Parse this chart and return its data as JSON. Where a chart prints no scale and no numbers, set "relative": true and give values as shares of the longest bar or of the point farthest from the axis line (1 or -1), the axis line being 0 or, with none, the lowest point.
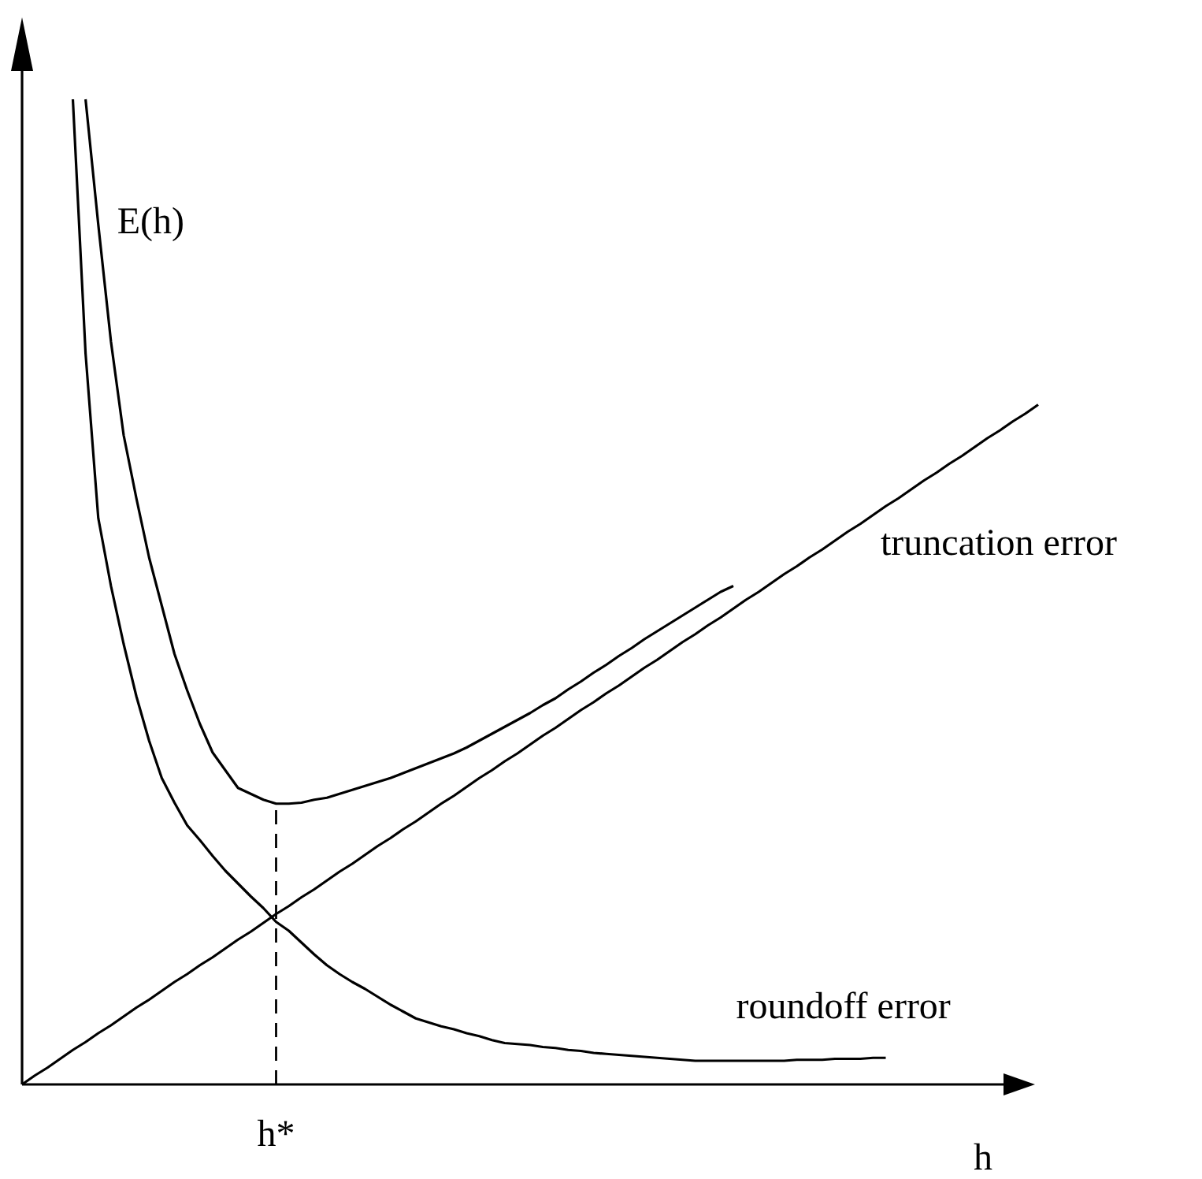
{
  "chart_data": {
    "type": "line",
    "relative": true,
    "xlabel": "h",
    "annotations": [
      "h*"
    ],
    "categories": [
      null,
      null,
      null,
      null,
      null,
      null,
      null,
      null,
      null,
      null,
      null,
      null,
      null,
      null,
      null,
      null,
      null,
      null,
      null,
      null,
      null,
      null,
      null,
      null,
      null,
      null,
      null,
      null,
      null,
      null,
      null,
      null,
      null,
      null,
      null,
      null,
      null,
      null,
      null,
      null,
      null,
      null,
      null,
      null,
      null,
      null,
      null,
      null,
      null,
      null,
      null,
      null,
      null,
      null,
      null,
      null,
      null,
      null,
      null,
      null,
      null,
      null,
      null,
      null,
      null,
      null,
      null,
      null,
      null,
      null,
      null,
      null,
      null,
      null,
      null,
      null,
      null,
      null,
      null,
      null,
      null
    ],
    "series": [
      {
        "name": "E(h)",
        "color": "#000000",
        "values": [
          null,
          null,
          null,
          null,
          null,
          1.0,
          0.873,
          0.754,
          0.659,
          0.595,
          0.535,
          0.486,
          0.437,
          0.4,
          0.366,
          0.337,
          0.319,
          0.301,
          0.295,
          0.289,
          0.285,
          0.285,
          0.286,
          0.289,
          0.291,
          0.295,
          0.299,
          0.303,
          0.307,
          0.311,
          0.316,
          0.321,
          0.326,
          0.331,
          0.336,
          0.342,
          0.349,
          0.356,
          0.363,
          0.37,
          0.377,
          0.385,
          0.392,
          0.401,
          0.409,
          0.418,
          0.426,
          0.435,
          0.443,
          0.452,
          0.46,
          0.468,
          0.476,
          0.484,
          0.492,
          0.5,
          0.506,
          null,
          null,
          null,
          null,
          null,
          null,
          null,
          null,
          null,
          null,
          null,
          null,
          null,
          null,
          null,
          null,
          null,
          null,
          null,
          null,
          null,
          null,
          null,
          null
        ]
      },
      {
        "name": "truncation error",
        "color": "#000000",
        "values": [
          0,
          0.009,
          0.017,
          0.026,
          0.035,
          0.043,
          0.052,
          0.06,
          0.069,
          0.078,
          0.086,
          0.095,
          0.104,
          0.112,
          0.121,
          0.129,
          0.138,
          0.147,
          0.155,
          0.164,
          0.173,
          0.181,
          0.19,
          0.198,
          0.207,
          0.216,
          0.224,
          0.233,
          0.242,
          0.25,
          0.259,
          0.267,
          0.276,
          0.285,
          0.293,
          0.302,
          0.311,
          0.319,
          0.328,
          0.336,
          0.345,
          0.354,
          0.362,
          0.371,
          0.38,
          0.388,
          0.397,
          0.405,
          0.414,
          0.423,
          0.431,
          0.44,
          0.449,
          0.457,
          0.466,
          0.474,
          0.483,
          0.492,
          0.5,
          0.509,
          0.518,
          0.526,
          0.535,
          0.543,
          0.552,
          0.561,
          0.569,
          0.578,
          0.587,
          0.595,
          0.604,
          0.613,
          0.621,
          0.63,
          0.638,
          0.647,
          0.656,
          0.664,
          0.673,
          0.681,
          0.69
        ]
      },
      {
        "name": "roundoff error",
        "color": "#000000",
        "values": [
          null,
          null,
          null,
          null,
          1.0,
          0.742,
          0.575,
          0.506,
          0.447,
          0.394,
          0.349,
          0.311,
          0.286,
          0.263,
          0.248,
          0.232,
          0.217,
          0.204,
          0.191,
          0.179,
          0.165,
          0.156,
          0.144,
          0.132,
          0.121,
          0.112,
          0.104,
          0.097,
          0.089,
          0.081,
          0.074,
          0.067,
          0.063,
          0.059,
          0.056,
          0.052,
          0.049,
          0.045,
          0.042,
          0.041,
          0.04,
          0.038,
          0.037,
          0.035,
          0.034,
          0.032,
          0.031,
          0.03,
          0.029,
          0.028,
          0.027,
          0.026,
          0.025,
          0.024,
          0.024,
          0.024,
          0.024,
          0.024,
          0.024,
          0.024,
          0.024,
          0.025,
          0.025,
          0.025,
          0.026,
          0.026,
          0.026,
          0.027,
          0.027,
          null,
          null,
          null,
          null,
          null,
          null,
          null,
          null,
          null,
          null,
          null,
          null
        ]
      }
    ]
  }
}
